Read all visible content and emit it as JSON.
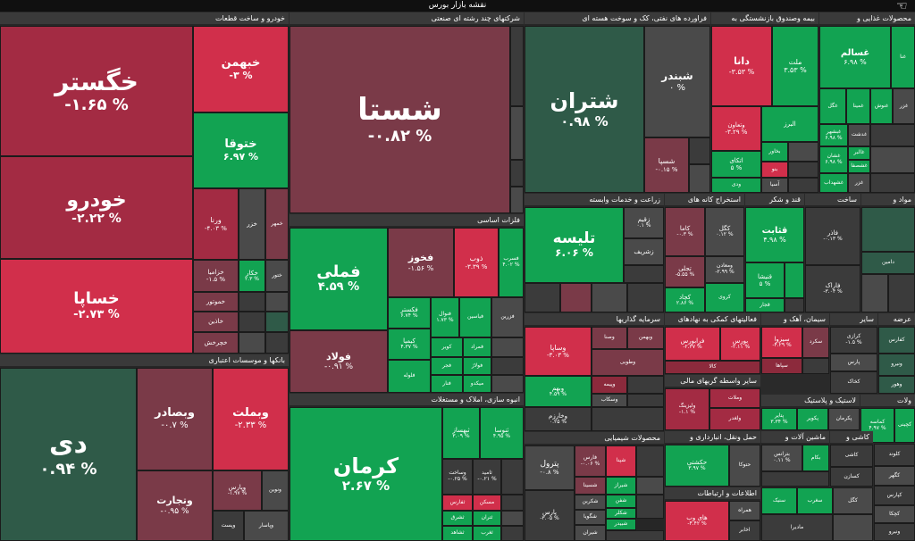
{
  "app": {
    "title": "نقشه بازار بورس"
  },
  "sections": {
    "auto": "خودرو و ساخت قطعات",
    "multi": "شرکتهای چند رشته ای صنعتی",
    "oil": "فراورده های نفتی، کک و سوخت هسته ای",
    "fund": "بیمه وصندوق بازنشستگی به",
    "food": "محصولات غذایی و",
    "metal": "فلزات اساسی",
    "agri": "زراعت و خدمات وابسته",
    "mine": "استخراج کانه های",
    "sugar": "قند و شکر",
    "constr": "ساخت",
    "chem2": "مواد و",
    "bank": "بانکها و موسسات اعتباری",
    "mass": "انبوه سازی، املاک و مستغلات",
    "invest": "سرمایه گذاریها",
    "multi2": "فعالیتهای کمکی به نهادهای",
    "cement": "سیمان، آهک و",
    "other": "سایر",
    "offer": "عرضه",
    "fin": "سایر واسطه گریهای مالی",
    "pharma": "لاستیک و پلاستیک",
    "tile": "کاشی و",
    "chem": "محصولات شیمیایی",
    "transport": "حمل ونقل، انبارداری و",
    "machine": "ماشین آلات و",
    "it": "اطلاعات و ارتباطات",
    "power": "ولات"
  },
  "tiles": {
    "khegostar": {
      "name": "خگستر",
      "value": "-۱.۶۵ %"
    },
    "khodro": {
      "name": "خودرو",
      "value": "-۲.۲۲ %"
    },
    "khsapa": {
      "name": "خساپا",
      "value": "-۲.۷۳ %"
    },
    "khbahman": {
      "name": "خبهمن",
      "value": "-۳ %"
    },
    "khtoga": {
      "name": "ختوقا",
      "value": "۶.۹۷ %"
    },
    "vorta": {
      "name": "ورنا",
      "value": "-۴.۰۳ %"
    },
    "khzar": {
      "name": "خزر",
      "value": ""
    },
    "khmehr": {
      "name": "خمهر",
      "value": ""
    },
    "khzamia": {
      "name": "خزامیا",
      "value": "-۱.۵ %"
    },
    "khkar": {
      "name": "خکار",
      "value": "۲.۳ %"
    },
    "khtur": {
      "name": "ختور",
      "value": ""
    },
    "khmotor": {
      "name": "خموتور",
      "value": ""
    },
    "khazin": {
      "name": "خاذین",
      "value": ""
    },
    "khcharkh": {
      "name": "خچرخش",
      "value": ""
    },
    "shasta": {
      "name": "شستا",
      "value": "-۰.۸۲ %"
    },
    "shetran": {
      "name": "شتران",
      "value": "۰.۹۸ %"
    },
    "shbandar": {
      "name": "شبندر",
      "value": "۰ %"
    },
    "shsepa": {
      "name": "شسپا",
      "value": "-۰.۱۵ %"
    },
    "dana": {
      "name": "دانا",
      "value": "-۳.۵۳ %"
    },
    "mellat": {
      "name": "ملت",
      "value": "۳.۵۳ %"
    },
    "vtavon": {
      "name": "وتعاون",
      "value": "-۳.۲۹ %"
    },
    "alborz": {
      "name": "البرز",
      "value": ""
    },
    "bakhavar": {
      "name": "بخاور",
      "value": ""
    },
    "atkai": {
      "name": "اتکای",
      "value": "۵ %"
    },
    "bano": {
      "name": "بنو",
      "value": ""
    },
    "vadi": {
      "name": "ودی",
      "value": ""
    },
    "asia": {
      "name": "آسیا",
      "value": ""
    },
    "ghesalam": {
      "name": "غسالم",
      "value": "۶.۹۸ %"
    },
    "ghena": {
      "name": "غنا",
      "value": ""
    },
    "ghgol": {
      "name": "غگل",
      "value": ""
    },
    "ghmina": {
      "name": "غمینا",
      "value": ""
    },
    "ghnoosh": {
      "name": "غنوش",
      "value": ""
    },
    "ghzar": {
      "name": "غزر",
      "value": ""
    },
    "ghbeshahr": {
      "name": "غبشهر",
      "value": "۶.۹۸ %"
    },
    "ghdasht": {
      "name": "غدشت",
      "value": ""
    },
    "ghshan": {
      "name": "غشان",
      "value": "۶.۹۸ %"
    },
    "ghalbr": {
      "name": "غالبر",
      "value": ""
    },
    "ghsham": {
      "name": "غشصفا",
      "value": ""
    },
    "ghsdhfa": {
      "name": "غشهداب",
      "value": ""
    },
    "ghzr": {
      "name": "غزر",
      "value": ""
    },
    "fameli": {
      "name": "فملی",
      "value": "۴.۵۹ %"
    },
    "fakhooz": {
      "name": "فخوز",
      "value": "-۱.۵۶ %"
    },
    "zob": {
      "name": "ذوب",
      "value": "-۳.۳۹ %"
    },
    "fasarb": {
      "name": "فسرب",
      "value": "۴.۰۲ %"
    },
    "folad": {
      "name": "فولاد",
      "value": "-۰.۹۱ %"
    },
    "faksatr": {
      "name": "فکستر",
      "value": "۶.۷۴ %"
    },
    "fanoval": {
      "name": "فنوال",
      "value": "۱.۷۳ %"
    },
    "fyasin": {
      "name": "فیاسین",
      "value": ""
    },
    "fzarin": {
      "name": "فزرین",
      "value": ""
    },
    "kimia": {
      "name": "کیمیا",
      "value": "۴.۳۷ %"
    },
    "kavir": {
      "name": "کویر",
      "value": ""
    },
    "famrad": {
      "name": "فمراد",
      "value": ""
    },
    "flooleh": {
      "name": "فلوله",
      "value": ""
    },
    "fajr": {
      "name": "فجر",
      "value": ""
    },
    "folazh": {
      "name": "فولاژ",
      "value": ""
    },
    "fanar": {
      "name": "فنار",
      "value": ""
    },
    "mikado": {
      "name": "میکدو",
      "value": ""
    },
    "talise": {
      "name": "تلیسه",
      "value": "۶.۰۶ %"
    },
    "zagem": {
      "name": "زقیم",
      "value": "۰.۱ %"
    },
    "zsharif": {
      "name": "زشریف",
      "value": ""
    },
    "kama": {
      "name": "کاما",
      "value": "-۰.۳ %"
    },
    "kagol": {
      "name": "کگل",
      "value": "۰.۱۲ %"
    },
    "tajali": {
      "name": "تجلی",
      "value": "-۵.۵۵ %"
    },
    "kchad": {
      "name": "کچاد",
      "value": "۲.۸۶ %"
    },
    "madan": {
      "name": "ومعادن",
      "value": "-۲.۹۹ %"
    },
    "kroy": {
      "name": "کروی",
      "value": ""
    },
    "qasabet": {
      "name": "قثابت",
      "value": "۴.۹۸ %"
    },
    "qnisha": {
      "name": "قنیشا",
      "value": "۵ %"
    },
    "qfajr": {
      "name": "قجار",
      "value": ""
    },
    "qadar": {
      "name": "فاذر",
      "value": "-۰.۱۳ %"
    },
    "faraak": {
      "name": "فاراک",
      "value": "-۳.۰۴ %"
    },
    "damin": {
      "name": "دامین",
      "value": ""
    },
    "di": {
      "name": "دی",
      "value": "۰.۹۴ %"
    },
    "vbsader": {
      "name": "وبصادر",
      "value": "-۰.۷ %"
    },
    "vbmellat": {
      "name": "وبملت",
      "value": "-۲.۳۳ %"
    },
    "vtejarat": {
      "name": "وتجارت",
      "value": "-۰.۹۵ %"
    },
    "vparsa": {
      "name": "وپارس",
      "value": "-۱.۹۷ %"
    },
    "vnovin": {
      "name": "ونوین",
      "value": ""
    },
    "vpost": {
      "name": "وپست",
      "value": ""
    },
    "vpasar": {
      "name": "وپاسار",
      "value": ""
    },
    "kerman": {
      "name": "کرمان",
      "value": "۲.۶۷ %"
    },
    "thamaz": {
      "name": "ثبهساز",
      "value": "۳.۰۹ %"
    },
    "tonya": {
      "name": "ثنوسا",
      "value": "۴.۹۵ %"
    },
    "tsakht": {
      "name": "وساخت",
      "value": "-۰.۲۵ %"
    },
    "tamid": {
      "name": "ثامید",
      "value": "-۰.۲۱ %"
    },
    "tmaskan": {
      "name": "ثمسکن",
      "value": ""
    },
    "tshargh": {
      "name": "ثشرق",
      "value": ""
    },
    "tfars": {
      "name": "ثفارس",
      "value": ""
    },
    "tmaskan2": {
      "name": "مسکن",
      "value": ""
    },
    "ttran": {
      "name": "ثتران",
      "value": ""
    },
    "tshahed": {
      "name": "ثشاهد",
      "value": ""
    },
    "tgharb": {
      "name": "ثغرب",
      "value": ""
    },
    "vsapa": {
      "name": "وساپا",
      "value": "-۳.۰۳ %"
    },
    "vsina": {
      "name": "وصنا",
      "value": ""
    },
    "vbahman": {
      "name": "وبهمن",
      "value": ""
    },
    "vtoosa": {
      "name": "وطوبی",
      "value": ""
    },
    "vbeh": {
      "name": "وبهم",
      "value": "۴.۵۹ %"
    },
    "vkharazm": {
      "name": "وخارزم",
      "value": "۰.۲۵ %"
    },
    "vpeyma": {
      "name": "وپیمه",
      "value": ""
    },
    "vskar": {
      "name": "وسکاب",
      "value": ""
    },
    "vmeli": {
      "name": "وصبا",
      "value": ""
    },
    "faraboors": {
      "name": "فرابورس",
      "value": "-۲.۳۷ %"
    },
    "boors": {
      "name": "بورس",
      "value": "-۲.۱۱ %"
    },
    "kala": {
      "name": "کالا",
      "value": ""
    },
    "sbazard": {
      "name": "سیزوا",
      "value": "-۴.۲۹ %"
    },
    "skord": {
      "name": "سکرد",
      "value": ""
    },
    "sipaha": {
      "name": "سپاها",
      "value": ""
    },
    "kradi": {
      "name": "کرازی",
      "value": "-۱.۵ %"
    },
    "kpars": {
      "name": "پارس",
      "value": ""
    },
    "kkhazar": {
      "name": "کخاک",
      "value": ""
    },
    "kfars": {
      "name": "کفارس",
      "value": ""
    },
    "vlisa": {
      "name": "ولیزینگ",
      "value": "-۱.۱ %"
    },
    "vmelat": {
      "name": "وملات",
      "value": ""
    },
    "vghadir": {
      "name": "ولغدر",
      "value": ""
    },
    "pkavir": {
      "name": "پکویر",
      "value": ""
    },
    "ptayer": {
      "name": "پتایر",
      "value": "۳.۳۴ %"
    },
    "pkerman": {
      "name": "پکرمان",
      "value": ""
    },
    "psima": {
      "name": "پسهند",
      "value": ""
    },
    "kmasa": {
      "name": "کماسه",
      "value": "۴.۹۷ %"
    },
    "kchini": {
      "name": "کچینی",
      "value": ""
    },
    "vnhar": {
      "name": "ونیرو",
      "value": ""
    },
    "vhoor": {
      "name": "وهور",
      "value": ""
    },
    "petrol": {
      "name": "پترول",
      "value": "-۰.۸ %"
    },
    "shfaras": {
      "name": "فارس",
      "value": "-۰.۰۶ %"
    },
    "shabriz": {
      "name": "شپنا",
      "value": ""
    },
    "shiraz": {
      "name": "شیراز",
      "value": ""
    },
    "shafan": {
      "name": "شفن",
      "value": ""
    },
    "shsina": {
      "name": "شسینا",
      "value": ""
    },
    "parsa": {
      "name": "پارس",
      "value": "-۳.۰۵ %"
    },
    "shkorba": {
      "name": "شکربن",
      "value": ""
    },
    "shkolr": {
      "name": "شکلر",
      "value": ""
    },
    "shgoya": {
      "name": "شگویا",
      "value": ""
    },
    "shbidar": {
      "name": "شبیدر",
      "value": ""
    },
    "shlbn": {
      "name": "شیران",
      "value": ""
    },
    "hkashti": {
      "name": "حکشتی",
      "value": "۳.۹۷ %"
    },
    "hpars": {
      "name": "حتوکا",
      "value": ""
    },
    "btrans": {
      "name": "بترانس",
      "value": "۰.۱۱ %"
    },
    "bkam": {
      "name": "بکام",
      "value": ""
    },
    "kashi": {
      "name": "کاشی",
      "value": ""
    },
    "kisazn": {
      "name": "کسازن",
      "value": ""
    },
    "hvob": {
      "name": "های وب",
      "value": "-۴.۴۲ %"
    },
    "hamrah": {
      "name": "همراه",
      "value": ""
    },
    "ahkhan": {
      "name": "اخابر",
      "value": ""
    },
    "mdabir": {
      "name": "مادیرا",
      "value": ""
    },
    "kloor": {
      "name": "کلوند",
      "value": ""
    },
    "kcharg": {
      "name": "کگهر",
      "value": ""
    },
    "kfram": {
      "name": "کپارس",
      "value": ""
    },
    "kbzm": {
      "name": "کچکا",
      "value": ""
    },
    "snik": {
      "name": "سنیک",
      "value": ""
    },
    "sgharb": {
      "name": "سغرب",
      "value": ""
    },
    "kgalo": {
      "name": "کگل",
      "value": ""
    },
    "kvino": {
      "name": "ونیرو",
      "value": ""
    }
  }
}
